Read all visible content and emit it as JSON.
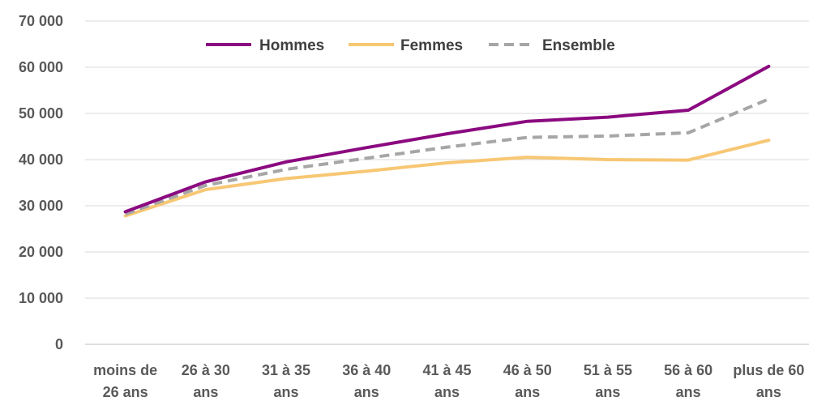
{
  "chart_data": {
    "type": "line",
    "title": "",
    "xlabel": "",
    "ylabel": "",
    "categories": [
      [
        "moins de",
        "26 ans"
      ],
      [
        "26 à 30",
        "ans"
      ],
      [
        "31 à 35",
        "ans"
      ],
      [
        "36 à 40",
        "ans"
      ],
      [
        "41 à 45",
        "ans"
      ],
      [
        "46 à 50",
        "ans"
      ],
      [
        "51 à 55",
        "ans"
      ],
      [
        "56 à 60",
        "ans"
      ],
      [
        "plus de 60",
        "ans"
      ]
    ],
    "ylim": [
      0,
      70000
    ],
    "yticks": [
      0,
      10000,
      20000,
      30000,
      40000,
      50000,
      60000,
      70000
    ],
    "ytick_labels": [
      "0",
      "10 000",
      "20 000",
      "30 000",
      "40 000",
      "50 000",
      "60 000",
      "70 000"
    ],
    "grid": true,
    "legend_position": "top-center",
    "series": [
      {
        "name": "Hommes",
        "color": "#8B0A80",
        "style": "solid",
        "values": [
          28700,
          35200,
          39500,
          42600,
          45600,
          48300,
          49200,
          50700,
          60200
        ]
      },
      {
        "name": "Femmes",
        "color": "#F7C774",
        "style": "solid",
        "values": [
          27800,
          33500,
          35900,
          37500,
          39300,
          40500,
          40000,
          39900,
          44200
        ]
      },
      {
        "name": "Ensemble",
        "color": "#A6A6A6",
        "style": "dashed",
        "values": [
          28200,
          34400,
          37900,
          40300,
          42700,
          44800,
          45100,
          45800,
          53100
        ]
      }
    ]
  }
}
